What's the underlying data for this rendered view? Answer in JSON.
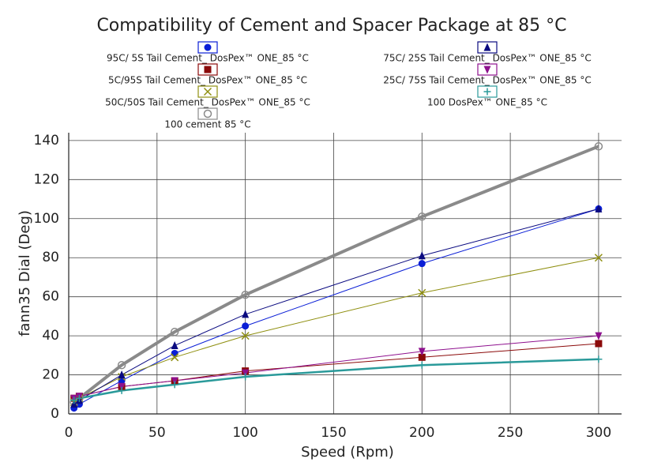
{
  "chart_data": {
    "type": "scatter",
    "title": "Compatibility of Cement and Spacer Package at 85 °C",
    "x_label": "Speed (Rpm)",
    "y_label": "fann35 Dial (Deg)",
    "xlim": [
      0,
      313
    ],
    "xticks": [
      0,
      50,
      100,
      150,
      200,
      250,
      300
    ],
    "ylim": [
      0,
      144
    ],
    "yticks": [
      0,
      20,
      40,
      60,
      80,
      100,
      120,
      140
    ],
    "grid": true,
    "x": [
      3,
      6,
      30,
      60,
      100,
      200,
      300
    ],
    "series": [
      {
        "name": "95C/ 5S Tail Cement_ DosPex™ ONE_85 °C",
        "color": "#0a1ed6",
        "marker": "circle",
        "values": [
          3,
          5,
          17,
          31,
          45,
          77,
          105
        ]
      },
      {
        "name": "5C/95S Tail Cement_ DosPex™ ONE_85 °C",
        "color": "#8b0a0a",
        "marker": "square",
        "values": [
          8,
          9,
          14,
          17,
          22,
          29,
          36
        ]
      },
      {
        "name": "50C/50S Tail Cement_ DosPex™ ONE_85 °C",
        "color": "#8f8f10",
        "marker": "x",
        "values": [
          6,
          8,
          19,
          29,
          40,
          62,
          80
        ]
      },
      {
        "name": "100 cement 85 °C",
        "color": "#8a8a8a",
        "marker": "open-circle",
        "values": [
          6,
          8,
          25,
          42,
          61,
          101,
          137
        ]
      },
      {
        "name": "75C/ 25S Tail Cement_ DosPex™ ONE_85 °C",
        "color": "#0a0a80",
        "marker": "triangle",
        "values": [
          5,
          7,
          20,
          35,
          51,
          81,
          105
        ]
      },
      {
        "name": "25C/ 75S Tail Cement_ DosPex™ ONE_85 °C",
        "color": "#8e108e",
        "marker": "triangle-down",
        "values": [
          8,
          9,
          14,
          17,
          21,
          32,
          40
        ]
      },
      {
        "name": "100 DosPex™ ONE_85 °C",
        "color": "#2a9a9a",
        "marker": "plus",
        "values": [
          7,
          8,
          12,
          15,
          19,
          25,
          28
        ]
      }
    ]
  }
}
